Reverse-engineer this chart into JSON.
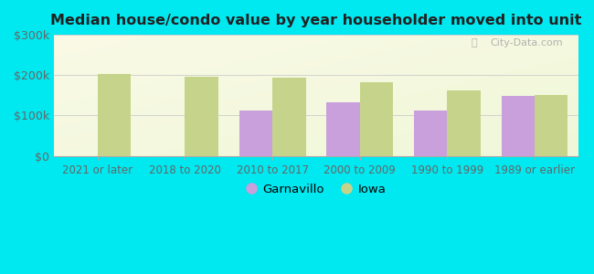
{
  "title": "Median house/condo value by year householder moved into unit",
  "categories": [
    "2021 or later",
    "2018 to 2020",
    "2010 to 2017",
    "2000 to 2009",
    "1990 to 1999",
    "1989 or earlier"
  ],
  "garnavillo_values": [
    0,
    0,
    112000,
    132000,
    112000,
    148000
  ],
  "iowa_values": [
    202000,
    196000,
    193000,
    182000,
    163000,
    150000
  ],
  "garnavillo_color": "#c9a0dc",
  "iowa_color": "#c5d48a",
  "background_outer": "#00e8f0",
  "ylim": [
    0,
    300000
  ],
  "yticks": [
    0,
    100000,
    200000,
    300000
  ],
  "ytick_labels": [
    "$0",
    "$100k",
    "$200k",
    "$300k"
  ],
  "watermark": "City-Data.com",
  "legend_labels": [
    "Garnavillo",
    "Iowa"
  ],
  "bar_width": 0.38
}
